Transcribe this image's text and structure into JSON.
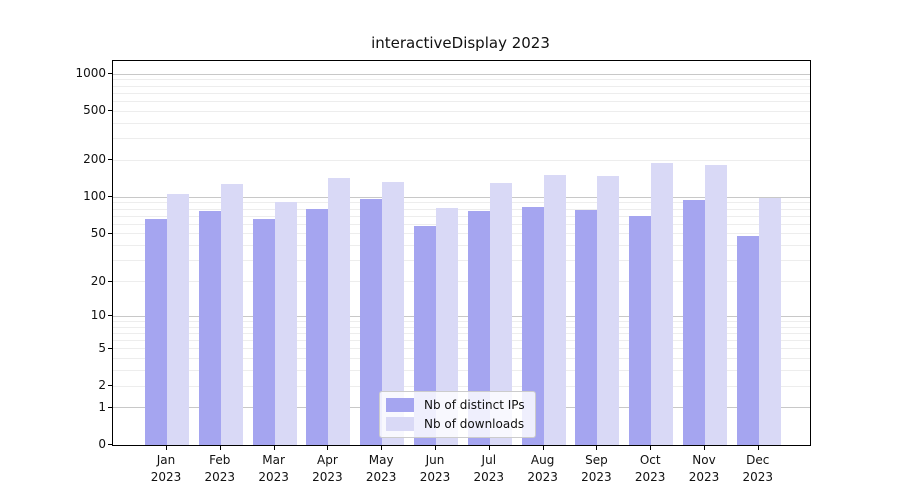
{
  "chart_data": {
    "type": "bar",
    "title": "interactiveDisplay 2023",
    "xlabel": "",
    "ylabel": "",
    "yscale": "log1p",
    "ylim": [
      0,
      1280
    ],
    "grid": true,
    "legend_position": "lower center",
    "yticks": [
      1000,
      500,
      200,
      100,
      50,
      20,
      10,
      5,
      2,
      1,
      0
    ],
    "categories": [
      "Jan 2023",
      "Feb 2023",
      "Mar 2023",
      "Apr 2023",
      "May 2023",
      "Jun 2023",
      "Jul 2023",
      "Aug 2023",
      "Sep 2023",
      "Oct 2023",
      "Nov 2023",
      "Dec 2023"
    ],
    "series": [
      {
        "name": "Nb of distinct IPs",
        "color": "#a5a5f0",
        "values": [
          67,
          78,
          66,
          80,
          97,
          58,
          77,
          84,
          79,
          70,
          95,
          48
        ]
      },
      {
        "name": "Nb of downloads",
        "color": "#d9d9f6",
        "values": [
          107,
          128,
          92,
          144,
          133,
          82,
          131,
          152,
          149,
          189,
          185,
          99
        ]
      }
    ]
  },
  "colors": {
    "grid_major": "#c8c8c8",
    "grid_minor": "#ededed",
    "axis": "#000000",
    "text": "#111111",
    "legend_border": "#cccccc"
  }
}
